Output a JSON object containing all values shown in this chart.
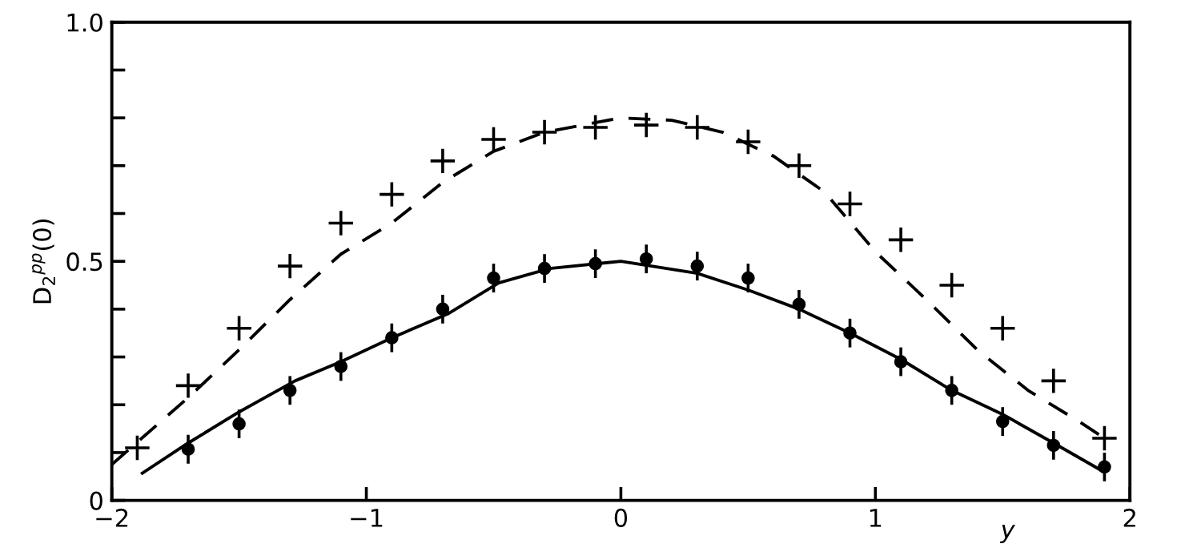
{
  "chart_data": {
    "type": "scatter",
    "xlabel": "y",
    "ylabel": "D$_{2}$$^{pp}$(0)",
    "xlim": [
      -2,
      2
    ],
    "ylim": [
      0,
      1.0
    ],
    "xticks": [
      {
        "value": -2,
        "label": "−2"
      },
      {
        "value": -1,
        "label": "−1"
      },
      0,
      1,
      2
    ],
    "yticks": [
      0,
      {
        "value": 0.1,
        "label": null
      },
      {
        "value": 0.2,
        "label": null
      },
      {
        "value": 0.3,
        "label": null
      },
      {
        "value": 0.4,
        "label": null
      },
      0.5,
      {
        "value": 0.6,
        "label": null
      },
      {
        "value": 0.7,
        "label": null
      },
      {
        "value": 0.8,
        "label": null
      },
      {
        "value": 0.9,
        "label": null
      },
      {
        "value": 1.0,
        "label": "1.0"
      }
    ],
    "grid": false,
    "legend": false,
    "series": [
      {
        "marker": "cross",
        "color": "#000000",
        "x": [
          -1.9,
          -1.7,
          -1.5,
          -1.3,
          -1.1,
          -0.9,
          -0.7,
          -0.5,
          -0.3,
          -0.1,
          0.1,
          0.3,
          0.5,
          0.7,
          0.9,
          1.1,
          1.3,
          1.5,
          1.7,
          1.9
        ],
        "values": [
          0.11,
          0.24,
          0.36,
          0.49,
          0.58,
          0.64,
          0.71,
          0.755,
          0.77,
          0.78,
          0.785,
          0.78,
          0.75,
          0.7,
          0.62,
          0.545,
          0.45,
          0.36,
          0.25,
          0.13
        ]
      },
      {
        "marker": "circle",
        "color": "#000000",
        "x": [
          -1.7,
          -1.5,
          -1.3,
          -1.1,
          -0.9,
          -0.7,
          -0.5,
          -0.3,
          -0.1,
          0.1,
          0.3,
          0.5,
          0.7,
          0.9,
          1.1,
          1.3,
          1.5,
          1.7,
          1.9
        ],
        "values": [
          0.107,
          0.16,
          0.23,
          0.28,
          0.34,
          0.4,
          0.465,
          0.485,
          0.495,
          0.505,
          0.49,
          0.465,
          0.41,
          0.35,
          0.29,
          0.23,
          0.165,
          0.115,
          0.07
        ],
        "errors": [
          0.03,
          0.03,
          0.03,
          0.03,
          0.03,
          0.03,
          0.03,
          0.03,
          0.03,
          0.03,
          0.03,
          0.03,
          0.03,
          0.03,
          0.03,
          0.03,
          0.03,
          0.03,
          0.03
        ]
      },
      {
        "type": "line",
        "line_style": "dashed",
        "marker": "none",
        "color": "#000000",
        "x": [
          -2.0,
          -1.7,
          -1.5,
          -1.3,
          -1.1,
          -0.9,
          -0.7,
          -0.5,
          -0.3,
          0,
          0.2,
          0.4,
          0.6,
          0.8,
          1.0,
          1.2,
          1.4,
          1.6,
          1.8,
          1.9
        ],
        "values": [
          0.075,
          0.215,
          0.315,
          0.42,
          0.515,
          0.58,
          0.665,
          0.73,
          0.77,
          0.8,
          0.795,
          0.77,
          0.72,
          0.645,
          0.52,
          0.42,
          0.315,
          0.23,
          0.165,
          0.13
        ]
      },
      {
        "type": "line",
        "line_style": "solid",
        "marker": "none",
        "color": "#000000",
        "x": [
          -1.88,
          -1.7,
          -1.5,
          -1.28,
          -1.1,
          -0.9,
          -0.68,
          -0.48,
          -0.28,
          0,
          0.3,
          0.5,
          0.7,
          0.9,
          1.1,
          1.3,
          1.5,
          1.7,
          1.88
        ],
        "values": [
          0.057,
          0.12,
          0.185,
          0.25,
          0.29,
          0.34,
          0.39,
          0.455,
          0.485,
          0.5,
          0.475,
          0.44,
          0.4,
          0.35,
          0.295,
          0.23,
          0.18,
          0.12,
          0.065
        ]
      }
    ]
  }
}
